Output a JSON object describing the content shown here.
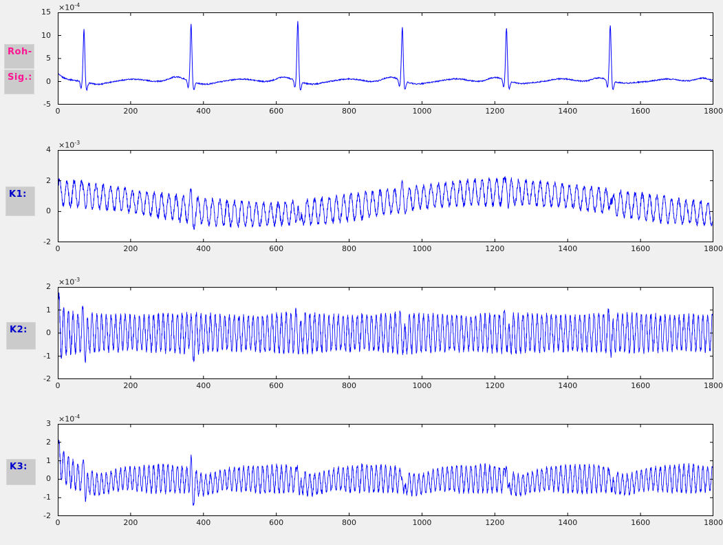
{
  "figure": {
    "background": "#f0f0f0",
    "axes_background": "#ffffff",
    "line_color": "#0000ff",
    "axis_color": "#000000",
    "tick_label_color": "#1a1a1a",
    "label_box_color": "#cbcbcb",
    "raw_label_color": "#ff1493",
    "channel_label_color": "#0000cd"
  },
  "labels": [
    {
      "text": "Roh-",
      "color": "#ff1493"
    },
    {
      "text": "Sig.:",
      "color": "#ff1493"
    },
    {
      "text": "K1:",
      "color": "#0000cd"
    },
    {
      "text": "K2:",
      "color": "#0000cd"
    },
    {
      "text": "K3:",
      "color": "#0000cd"
    }
  ],
  "chart_data": [
    {
      "id": "roh-sig",
      "type": "line",
      "description": "Raw ECG signal: baseline near 0 with noise, six QRS complexes with R peaks ~11.5-13x10^-4, Q/S dips ~-1.7, T-wave bumps ~0.9, initial transient ~1.8 decaying.",
      "exp_base": "×10",
      "exponent": "-4",
      "xlim": [
        0,
        1800
      ],
      "ylim": [
        -5,
        15
      ],
      "x_ticks": [
        0,
        200,
        400,
        600,
        800,
        1000,
        1200,
        1400,
        1600,
        1800
      ],
      "y_ticks": [
        15,
        10,
        5,
        0,
        -5
      ],
      "grid": false,
      "legend": null,
      "signal": {
        "kind": "ecg",
        "step": 1,
        "noise": 0.13,
        "wander_amp": 0.14,
        "wander_period": 150,
        "init": {
          "amp": 1.8,
          "tau": 18
        },
        "beats": {
          "positions": [
            72,
            366,
            659,
            946,
            1232,
            1517
          ],
          "peaks": [
            11.4,
            12.4,
            13.1,
            11.6,
            11.5,
            12.1
          ]
        },
        "components": [
          {
            "amp": -1.6,
            "center": -8,
            "width": 3
          },
          {
            "amp": "peak",
            "center": 0,
            "width": 3.2
          },
          {
            "amp": -1.8,
            "center": 7,
            "width": 4
          },
          {
            "amp": -0.45,
            "center": 38,
            "width": 30
          },
          {
            "amp": 0.45,
            "center": 150,
            "width": 45
          },
          {
            "amp": 0.88,
            "center": 252,
            "width": 28
          }
        ]
      }
    },
    {
      "id": "k1",
      "type": "line",
      "description": "Channel K1: dense high-frequency oscillation (~+-0.8x10^-3) riding on a slow sinusoidal baseline (max ~1.3 near x=0 and x=1230, min ~-0.2 near x=550); spikes at heartbeat positions, tallest ~3.1 at x=1232, downward spike ~-2.2 at x=659.",
      "exp_base": "×10",
      "exponent": "-3",
      "xlim": [
        0,
        1800
      ],
      "ylim": [
        -2,
        4
      ],
      "x_ticks": [
        0,
        200,
        400,
        600,
        800,
        1000,
        1200,
        1400,
        1600,
        1800
      ],
      "y_ticks": [
        4,
        2,
        0,
        -2
      ],
      "grid": false,
      "legend": null,
      "signal": {
        "kind": "osc",
        "step": 0.5,
        "carrier_period": 20,
        "carrier_amp": 0.8,
        "amp_noise": 0.16,
        "amp_mod": {
          "amp": 0.06,
          "period": 400,
          "phase_x": 0
        },
        "mean": {
          "base": 0.55,
          "amp": 0.73,
          "period": 1300,
          "phase_x": 1210
        },
        "init": {
          "amp": 0,
          "tau": 20,
          "mean_amp": 0,
          "mean_tau": 20
        },
        "beats": {
          "positions": [
            72,
            366,
            659,
            946,
            1232,
            1517
          ],
          "up": [
            0.6,
            0.55,
            0.6,
            0.5,
            1.05,
            0.6
          ],
          "up_center": 0,
          "up_width": 3.5,
          "down": [
            0.3,
            0.5,
            1.3,
            0.4,
            0.45,
            0.5
          ],
          "down_center": 6,
          "down_width": 4
        }
      }
    },
    {
      "id": "k2",
      "type": "line",
      "description": "Channel K2: stationary high-frequency oscillation around 0, amplitude ~+-0.85x10^-3; initial transient to ~1.9 at x=0; small +-1.35 excursions at each heartbeat position.",
      "exp_base": "×10",
      "exponent": "-3",
      "xlim": [
        0,
        1800
      ],
      "ylim": [
        -2,
        2
      ],
      "x_ticks": [
        0,
        200,
        400,
        600,
        800,
        1000,
        1200,
        1400,
        1600,
        1800
      ],
      "y_ticks": [
        2,
        1,
        0,
        -1,
        -2
      ],
      "grid": false,
      "legend": null,
      "signal": {
        "kind": "osc",
        "step": 0.5,
        "carrier_period": 13,
        "carrier_amp": 0.8,
        "amp_noise": 0.12,
        "amp_mod": {
          "amp": 0.05,
          "period": 300,
          "phase_x": 50
        },
        "mean": {
          "base": 0,
          "amp": 0,
          "period": 1000,
          "phase_x": 0
        },
        "init": {
          "amp": 0.75,
          "tau": 14,
          "mean_amp": 0.35,
          "mean_tau": 10
        },
        "beats": {
          "positions": [
            72,
            366,
            659,
            946,
            1232,
            1517
          ],
          "up": [
            0.5,
            0.55,
            0.5,
            0.5,
            0.5,
            0.5
          ],
          "up_center": -2,
          "up_width": 4,
          "down": [
            0.55,
            0.6,
            0.55,
            0.6,
            0.55,
            0.55
          ],
          "down_center": 4,
          "down_width": 5
        }
      }
    },
    {
      "id": "k3",
      "type": "line",
      "description": "Channel K3: high-frequency oscillation ~+-0.7x10^-4 around 0; initial transient up to ~2.1x10^-4 decaying over first ~60 samples; at each heartbeat an upward spike (1.8-2.4) and downward spike (~-1.5) followed by a short baseline dip to ~-0.3.",
      "exp_base": "×10",
      "exponent": "-4",
      "xlim": [
        0,
        1800
      ],
      "ylim": [
        -2,
        3
      ],
      "x_ticks": [
        0,
        200,
        400,
        600,
        800,
        1000,
        1200,
        1400,
        1600,
        1800
      ],
      "y_ticks": [
        3,
        2,
        1,
        0,
        -1,
        -2
      ],
      "grid": false,
      "legend": null,
      "signal": {
        "kind": "osc",
        "step": 0.5,
        "carrier_period": 13,
        "carrier_amp": 0.66,
        "amp_noise": 0.14,
        "amp_mod": {
          "amp": 0.1,
          "period": 287,
          "phase_x": 290
        },
        "mean": {
          "base": 0.02,
          "amp": 0,
          "period": 1000,
          "phase_x": 0
        },
        "init": {
          "amp": 0.18,
          "tau": 30,
          "mean_amp": 1.25,
          "mean_tau": 26
        },
        "beats": {
          "positions": [
            72,
            366,
            659,
            946,
            1232,
            1517
          ],
          "up": [
            0.95,
            1.05,
            1.35,
            0.95,
            1.55,
            0.85
          ],
          "up_center": 0,
          "up_width": 3,
          "down": [
            0.75,
            0.85,
            0.95,
            0.95,
            0.85,
            0.75
          ],
          "down_center": 5,
          "down_width": 4,
          "dip": {
            "amp": -0.32,
            "center": 40,
            "width": 40
          }
        }
      }
    }
  ]
}
